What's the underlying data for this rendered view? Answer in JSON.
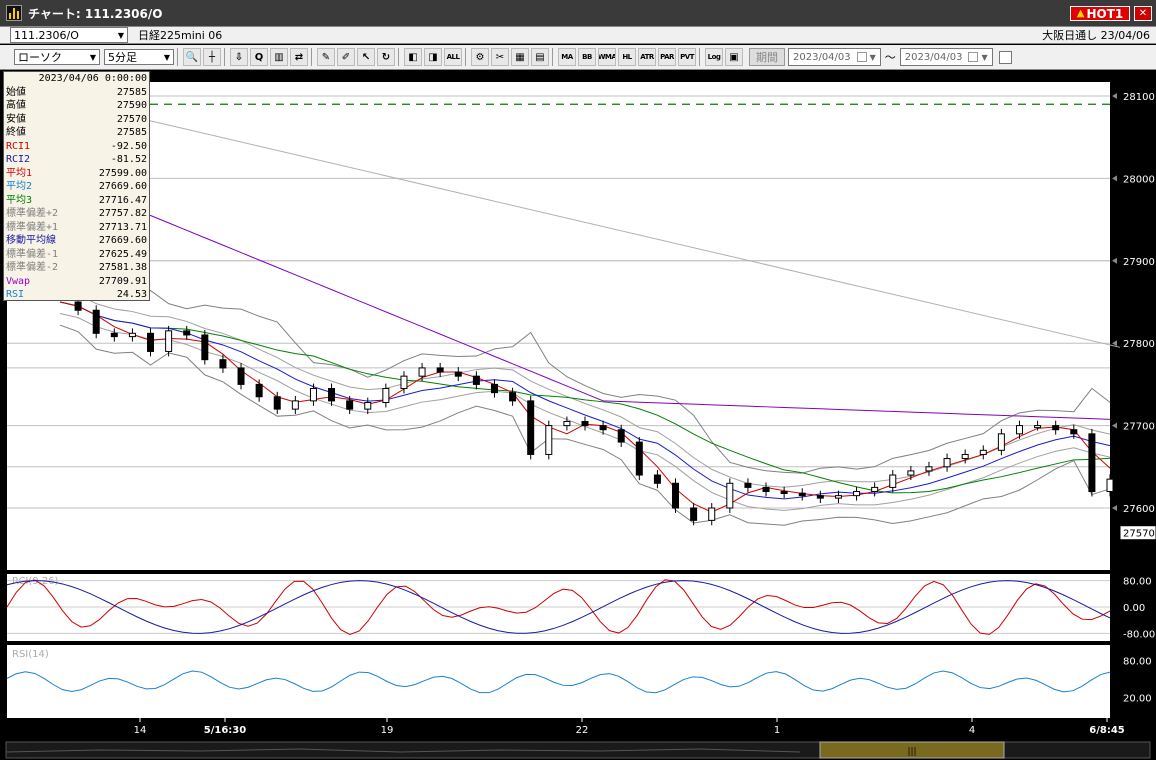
{
  "window": {
    "title": "チャート: 111.2306/O",
    "hot_label": "HOT1",
    "close_icon": "close-icon"
  },
  "infobar": {
    "symbol": "111.2306/O",
    "instrument": "日経225mini 06",
    "market": "大阪日通し 23/04/06"
  },
  "toolbar": {
    "chart_type": "ローソク",
    "interval": "5分足",
    "period_button": "期間",
    "date_from": "2023/04/03",
    "date_to": "2023/04/03",
    "tilde": "〜",
    "buttons": [
      "zoom-icon",
      "crosshair-icon",
      "buy-icon",
      "search-icon",
      "bar-chart-icon",
      "exchange-icon",
      "memo-icon",
      "pen-icon",
      "cursor-icon",
      "redo-icon",
      "split-left-icon",
      "split-right-icon",
      "ALL",
      "settings-icon",
      "tool-icon",
      "palette-icon",
      "grid-icon",
      "MA",
      "BB",
      "WMA",
      "HL",
      "ATR",
      "PAR",
      "PVT",
      "Log",
      "window-icon"
    ]
  },
  "info_panel": {
    "datetime": "2023/04/06 0:00:00",
    "rows": [
      {
        "label": "始値",
        "value": "27585",
        "color": "#000000"
      },
      {
        "label": "高値",
        "value": "27590",
        "color": "#000000"
      },
      {
        "label": "安値",
        "value": "27570",
        "color": "#000000"
      },
      {
        "label": "終値",
        "value": "27585",
        "color": "#000000"
      },
      {
        "label": "RCI1",
        "value": "-92.50",
        "color": "#d00000"
      },
      {
        "label": "RCI2",
        "value": "-81.52",
        "color": "#1a1aa0"
      },
      {
        "label": "平均1",
        "value": "27599.00",
        "color": "#d00000"
      },
      {
        "label": "平均2",
        "value": "27669.60",
        "color": "#1a80d0"
      },
      {
        "label": "平均3",
        "value": "27716.47",
        "color": "#008000"
      },
      {
        "label": "標準偏差+2",
        "value": "27757.82",
        "color": "#808080"
      },
      {
        "label": "標準偏差+1",
        "value": "27713.71",
        "color": "#808080"
      },
      {
        "label": "移動平均線",
        "value": "27669.60",
        "color": "#1a1aa0"
      },
      {
        "label": "標準偏差-1",
        "value": "27625.49",
        "color": "#808080"
      },
      {
        "label": "標準偏差-2",
        "value": "27581.38",
        "color": "#808080"
      },
      {
        "label": "Vwap",
        "value": "27709.91",
        "color": "#a000d0"
      },
      {
        "label": "RSI",
        "value": "24.53",
        "color": "#1a80d0"
      }
    ]
  },
  "price_axis": {
    "labels": [
      "28100",
      "28000",
      "27900",
      "27800",
      "27700",
      "27600"
    ],
    "current_price": "27570"
  },
  "rci_panel": {
    "title": "RCI(9,26)",
    "labels": [
      "80.00",
      "0.00",
      "-80.00"
    ]
  },
  "rsi_panel": {
    "title": "RSI(14)",
    "labels": [
      "80.00",
      "20.00"
    ]
  },
  "time_axis": {
    "labels": [
      "14",
      "5/16:30",
      "19",
      "22",
      "1",
      "4",
      "6/8:45"
    ]
  },
  "colors": {
    "background": "#ffffff",
    "candle_up": "#ffffff",
    "candle_down": "#000000",
    "avg1": "#d00000",
    "avg2": "#1a1ad0",
    "avg3": "#008000",
    "vwap": "#8000c0",
    "band": "#808080",
    "dashed": "#008000"
  },
  "chart_data": [
    {
      "type": "candlestick",
      "y_axis_ticks": [
        28100,
        28000,
        27900,
        27800,
        27700,
        27600
      ],
      "current_price": 27570,
      "dashed_line_level": 28090,
      "x_tick_labels": [
        "14",
        "5/16:30",
        "19",
        "22",
        "1",
        "4",
        "6/8:45"
      ],
      "approx_close_path": [
        27850,
        27840,
        27812,
        27808,
        27812,
        27790,
        27815,
        27810,
        27780,
        27770,
        27750,
        27735,
        27720,
        27730,
        27745,
        27730,
        27720,
        27728,
        27745,
        27760,
        27770,
        27765,
        27760,
        27750,
        27740,
        27730,
        27665,
        27700,
        27705,
        27700,
        27695,
        27680,
        27640,
        27630,
        27600,
        27585,
        27600,
        27630,
        27625,
        27620,
        27618,
        27615,
        27612,
        27615,
        27620,
        27625,
        27640,
        27645,
        27650,
        27660,
        27665,
        27670,
        27690,
        27700,
        27700,
        27695,
        27690,
        27620,
        27635
      ]
    },
    {
      "type": "line",
      "title": "RCI(9,26)",
      "y_ticks": [
        80,
        0,
        -80
      ]
    },
    {
      "type": "line",
      "title": "RSI(14)",
      "y_ticks": [
        80,
        20
      ]
    }
  ]
}
